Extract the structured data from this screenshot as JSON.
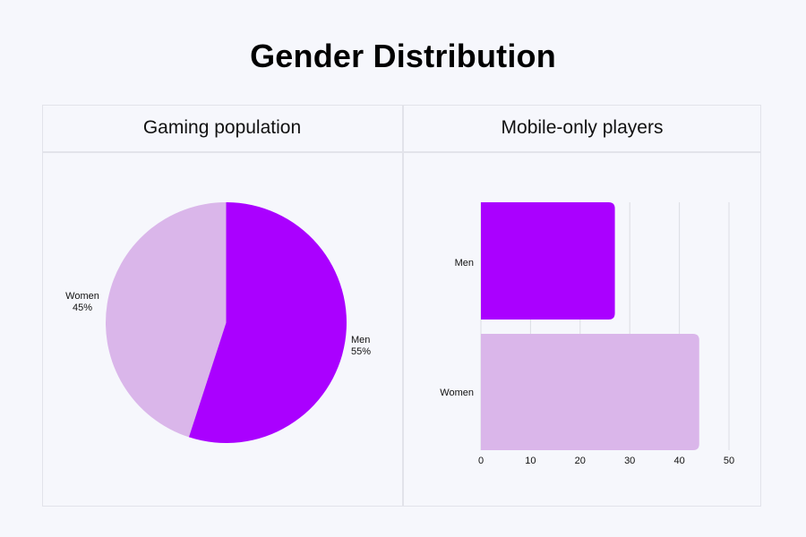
{
  "title": "Gender Distribution",
  "colors": {
    "background": "#F6F7FC",
    "border": "#E2E3EA",
    "men": "#AA00FF",
    "women": "#DAB6EA",
    "gridline": "#DCDDE3",
    "text": "#111111"
  },
  "panels": {
    "left": {
      "title": "Gaming population"
    },
    "right": {
      "title": "Mobile-only players"
    }
  },
  "pie_labels": {
    "women_name": "Women",
    "women_pct": "45%",
    "men_name": "Men",
    "men_pct": "55%"
  },
  "bar_labels": {
    "men": "Men",
    "women": "Women",
    "ticks": [
      "0",
      "10",
      "20",
      "30",
      "40",
      "50"
    ]
  },
  "chart_data": [
    {
      "type": "pie",
      "title": "Gaming population",
      "categories": [
        "Men",
        "Women"
      ],
      "values": [
        55,
        45
      ],
      "labels": [
        "Men 55%",
        "Women 45%"
      ],
      "colors": [
        "#AA00FF",
        "#DAB6EA"
      ],
      "start_angle": "12 o'clock, clockwise"
    },
    {
      "type": "bar",
      "orientation": "horizontal",
      "title": "Mobile-only players",
      "categories": [
        "Men",
        "Women"
      ],
      "values": [
        27,
        44
      ],
      "colors": [
        "#AA00FF",
        "#DAB6EA"
      ],
      "xlabel": "",
      "ylabel": "",
      "xlim": [
        0,
        50
      ],
      "xticks": [
        0,
        10,
        20,
        30,
        40,
        50
      ],
      "grid": "vertical gridlines",
      "legend": "none"
    }
  ]
}
